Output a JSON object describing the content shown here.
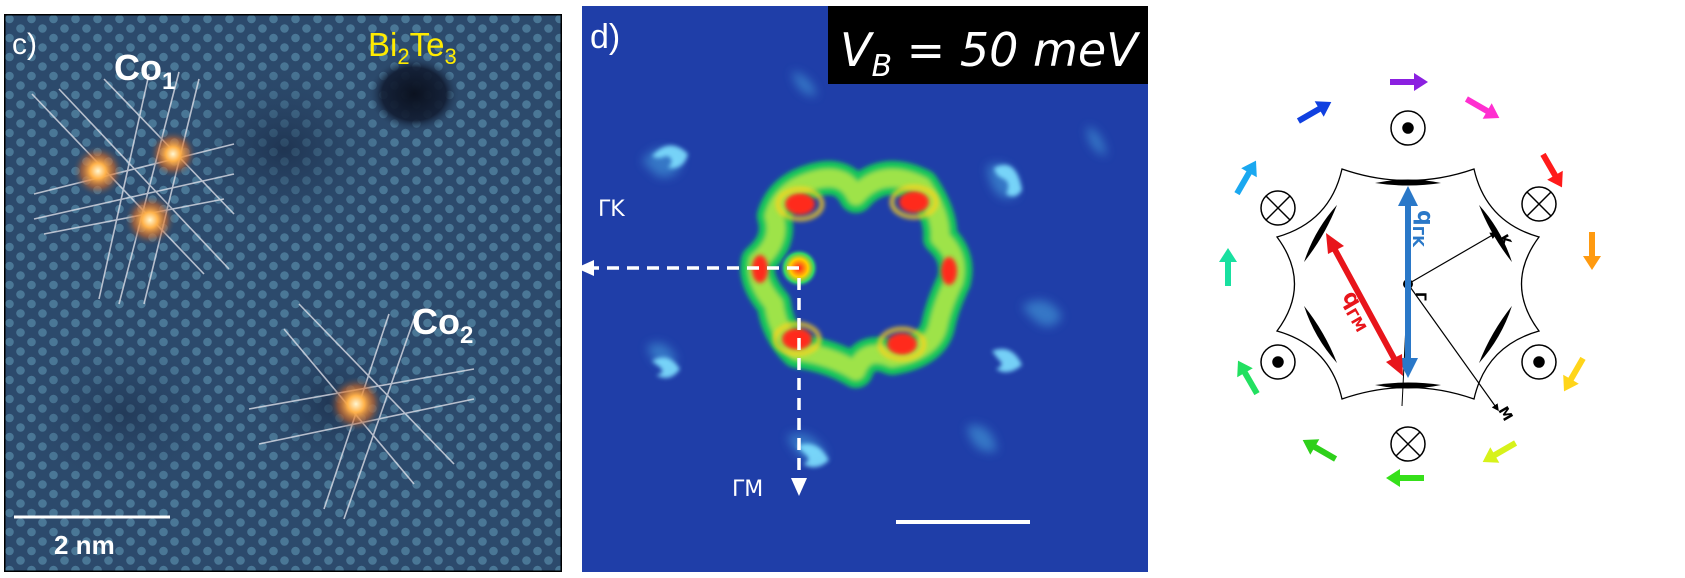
{
  "panel_c": {
    "panel_label": "c)",
    "material": {
      "base": "Bi",
      "sub1": "2",
      "mid": "Te",
      "sub2": "3"
    },
    "adatom_1": {
      "base": "Co",
      "sub": "1"
    },
    "adatom_2": {
      "base": "Co",
      "sub": "2"
    },
    "scale_bar_label": "2 nm"
  },
  "panel_d": {
    "panel_label": "d)",
    "bias_label": {
      "v": "V",
      "sub": "B",
      "rest": " = 50 meV"
    },
    "direction_gk": "ΓK",
    "direction_gm": "ΓM"
  },
  "panel_e": {
    "q_gk": {
      "base": "q",
      "sub": "ΓK"
    },
    "q_gm": {
      "base": "q",
      "sub": "ΓM"
    },
    "point_gamma": "Γ",
    "point_k": "K",
    "point_m": "M"
  },
  "colors": {
    "stm_background": "#2b4769",
    "adatom_glow": "#ff9a3c",
    "qpi_background": "#1f3ea8",
    "q_gk_arrow": "#2a78c8",
    "q_gm_arrow": "#e8151b",
    "label_yellow": "#ffeb00"
  }
}
